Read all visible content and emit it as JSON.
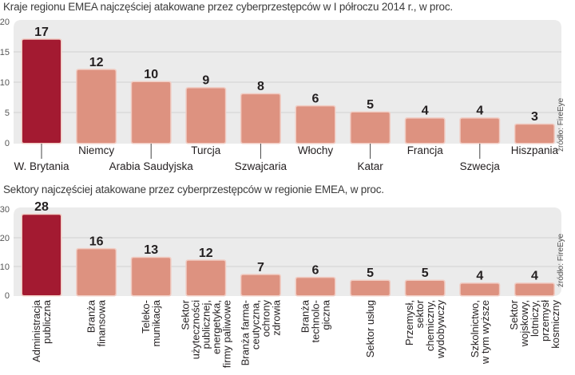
{
  "colors": {
    "highlight": "#a31a31",
    "bar": "#dd9280",
    "bar_border": "#f1ccc3",
    "plot_bg": "#ebebeb",
    "grid": "#d2d2d2",
    "label": "#231f20",
    "tick": "#555555"
  },
  "chart_data": [
    {
      "type": "bar",
      "title": "Kraje regionu EMEA najczęściej atakowane przez cyberprzestępców w I półroczu 2014 r., w proc.",
      "source": "źródło: FireEye",
      "xlabel": "",
      "ylabel": "",
      "ylim": [
        0,
        20
      ],
      "yticks": [
        0,
        5,
        10,
        15,
        20
      ],
      "grid": true,
      "categories": [
        "W. Brytania",
        "Niemcy",
        "Arabia Saudyjska",
        "Turcja",
        "Szwajcaria",
        "Włochy",
        "Katar",
        "Francja",
        "Szwecja",
        "Hiszpania"
      ],
      "values": [
        17,
        12,
        10,
        9,
        8,
        6,
        5,
        4,
        4,
        3
      ],
      "label_staggered": [
        true,
        false,
        true,
        false,
        true,
        false,
        true,
        false,
        true,
        false
      ],
      "highlight_index": 0
    },
    {
      "type": "bar",
      "title": "Sektory najczęściej atakowane przez cyberprzestępców w regionie EMEA, w proc.",
      "source": "źródło: FireEye",
      "xlabel": "",
      "ylabel": "",
      "ylim": [
        0,
        30
      ],
      "yticks": [
        0,
        10,
        20,
        30
      ],
      "grid": true,
      "categories": [
        [
          "Administracja",
          "publiczna"
        ],
        [
          "Branża",
          "finansowa"
        ],
        [
          "Teleko-",
          "munikacja"
        ],
        [
          "Sektor",
          "użyteczności",
          "publicznej,",
          "energetyka,",
          "firmy paliwowe"
        ],
        [
          "Branża farma-",
          "ceutyczna,",
          "ochrony",
          "zdrowia"
        ],
        [
          "Branża",
          "technolo-",
          "giczna"
        ],
        [
          "Sektor usług"
        ],
        [
          "Przemysł,",
          "sektor",
          "chemiczny,",
          "wydobywczy"
        ],
        [
          "Szkolnictwo,",
          "w tym wyższe"
        ],
        [
          "Sektor",
          "wojskowy,",
          "lotniczy,",
          "przemysł",
          "kosmiczny"
        ]
      ],
      "values": [
        28,
        16,
        13,
        12,
        7,
        6,
        5,
        5,
        4,
        4
      ],
      "highlight_index": 0
    }
  ]
}
